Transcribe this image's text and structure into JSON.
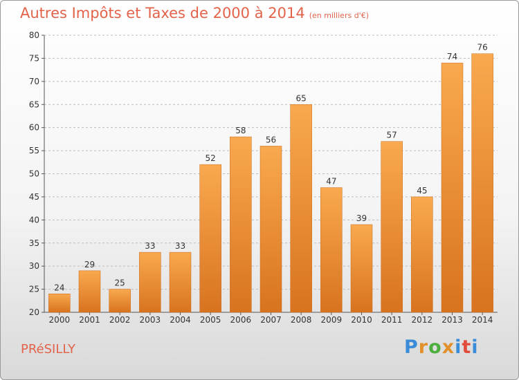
{
  "header": {
    "title": "Autres Impôts et Taxes de 2000 à 2014",
    "unit": "(en milliers d'€)"
  },
  "footer": {
    "place": "PRéSILLY",
    "logo_letters": [
      "P",
      "r",
      "o",
      "x",
      "i",
      "t",
      "i"
    ],
    "logo_colors": [
      "#3a8bd8",
      "#e2902a",
      "#4cae3c",
      "#e2902a",
      "#3a8bd8",
      "#e24a3a",
      "#3a8bd8"
    ]
  },
  "colors": {
    "bar_top": "#f9a94f",
    "bar_bottom": "#d8731f",
    "title": "#e2634a"
  },
  "chart_data": {
    "type": "bar",
    "categories": [
      "2000",
      "2001",
      "2002",
      "2003",
      "2004",
      "2005",
      "2006",
      "2007",
      "2008",
      "2009",
      "2010",
      "2011",
      "2012",
      "2013",
      "2014"
    ],
    "values": [
      24,
      29,
      25,
      33,
      33,
      52,
      58,
      56,
      65,
      47,
      39,
      57,
      45,
      74,
      76
    ],
    "yticks": [
      20,
      25,
      30,
      35,
      40,
      45,
      50,
      55,
      60,
      65,
      70,
      75,
      80
    ],
    "ylim": [
      20,
      80
    ],
    "grid": "horizontal-dashed",
    "legend": "none"
  }
}
